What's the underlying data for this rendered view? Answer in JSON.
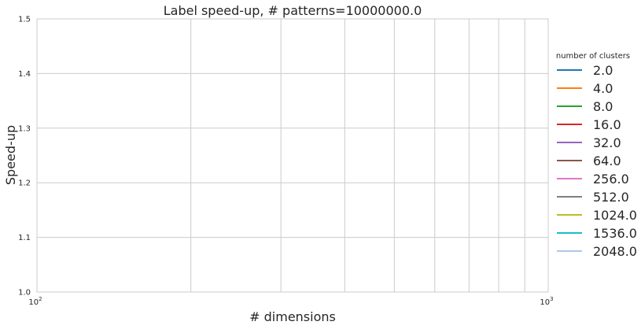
{
  "chart_data": {
    "type": "line",
    "title": "Label speed-up, # patterns=10000000.0",
    "xlabel": "# dimensions",
    "ylabel": "Speed-up",
    "xscale": "log",
    "xlim": [
      100,
      1000
    ],
    "ylim": [
      1.0,
      1.5
    ],
    "x_ticks": [
      {
        "value": 100,
        "base": "10",
        "exp": "2"
      },
      {
        "value": 1000,
        "base": "10",
        "exp": "3"
      }
    ],
    "y_ticks": [
      "1.0",
      "1.1",
      "1.2",
      "1.3",
      "1.4",
      "1.5"
    ],
    "grid": true,
    "legend": {
      "title": "number of clusters",
      "placement": "outside-right",
      "entries": [
        {
          "label": "2.0",
          "color": "#1f77b4"
        },
        {
          "label": "4.0",
          "color": "#ff7f0e"
        },
        {
          "label": "8.0",
          "color": "#2ca02c"
        },
        {
          "label": "16.0",
          "color": "#d62728"
        },
        {
          "label": "32.0",
          "color": "#9467bd"
        },
        {
          "label": "64.0",
          "color": "#8c564b"
        },
        {
          "label": "256.0",
          "color": "#e377c2"
        },
        {
          "label": "512.0",
          "color": "#7f7f7f"
        },
        {
          "label": "1024.0",
          "color": "#bcbd22"
        },
        {
          "label": "1536.0",
          "color": "#17becf"
        },
        {
          "label": "2048.0",
          "color": "#aec7e8"
        }
      ]
    },
    "series": []
  }
}
